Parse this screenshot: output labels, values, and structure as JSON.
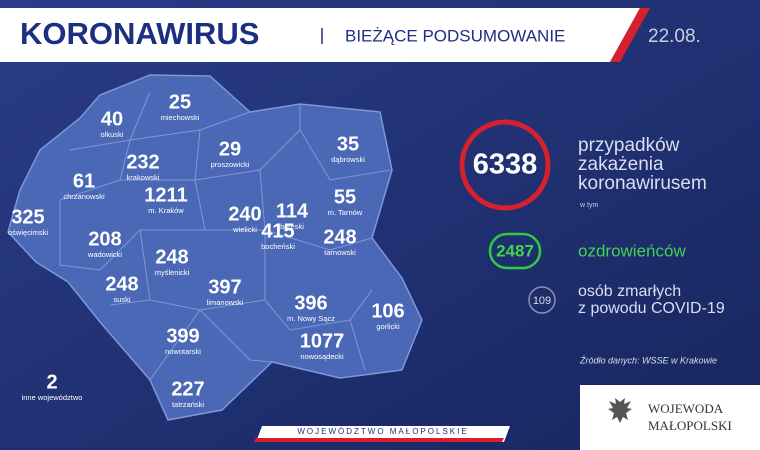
{
  "header": {
    "title": "KORONAWIRUS",
    "subtitle": "BIEŻĄCE PODSUMOWANIE",
    "date": "22.08."
  },
  "regions": [
    {
      "value": "40",
      "name": "olkuski"
    },
    {
      "value": "25",
      "name": "miechowski"
    },
    {
      "value": "29",
      "name": "proszowicki"
    },
    {
      "value": "35",
      "name": "dąbrowski"
    },
    {
      "value": "232",
      "name": "krakowski"
    },
    {
      "value": "61",
      "name": "chrzanowski"
    },
    {
      "value": "1211",
      "name": "m. Kraków"
    },
    {
      "value": "240",
      "name": "wielicki"
    },
    {
      "value": "114",
      "name": "brzeski"
    },
    {
      "value": "55",
      "name": "m. Tarnów"
    },
    {
      "value": "325",
      "name": "oświęcimski"
    },
    {
      "value": "208",
      "name": "wadowicki"
    },
    {
      "value": "415",
      "name": "bocheński"
    },
    {
      "value": "248",
      "name": "tarnowski"
    },
    {
      "value": "248",
      "name": "myślenicki"
    },
    {
      "value": "248",
      "name": "suski"
    },
    {
      "value": "397",
      "name": "limanowski"
    },
    {
      "value": "396",
      "name": "m. Nowy Sącz"
    },
    {
      "value": "106",
      "name": "gorlicki"
    },
    {
      "value": "399",
      "name": "nowotarski"
    },
    {
      "value": "1077",
      "name": "nowosądecki"
    },
    {
      "value": "2",
      "name": "inne województwo"
    },
    {
      "value": "227",
      "name": "tatrzański"
    }
  ],
  "stats": {
    "total": {
      "value": "6338",
      "label_lines": [
        "przypadków",
        "zakażenia",
        "koronawirusem"
      ]
    },
    "including": "w tym",
    "recovered": {
      "value": "2487",
      "label": "ozdrowieńców"
    },
    "deaths": {
      "value": "109",
      "label_lines": [
        "osób zmarłych",
        "z powodu COVID-19"
      ]
    },
    "source": "Źródło danych: WSSE w Krakowie"
  },
  "footer": {
    "region": "WOJEWÓDZTWO MAŁOPOLSKIE",
    "logo_lines": [
      "WOJEWODA",
      "MAŁOPOLSKI"
    ]
  }
}
